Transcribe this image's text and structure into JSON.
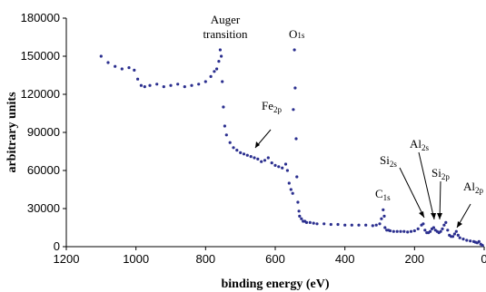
{
  "chart_data": {
    "type": "scatter",
    "xlabel": "binding energy (eV)",
    "ylabel": "arbitrary units",
    "xlim": [
      1200,
      0
    ],
    "ylim": [
      0,
      180000
    ],
    "x_reversed": true,
    "x_ticks": [
      1200,
      1000,
      800,
      600,
      400,
      200,
      0
    ],
    "y_ticks": [
      0,
      30000,
      60000,
      90000,
      120000,
      150000,
      180000
    ],
    "x_tick_labels": [
      "1200",
      "1000",
      "800",
      "600",
      "400",
      "200",
      "0"
    ],
    "y_tick_labels": [
      "0",
      "30000",
      "60000",
      "90000",
      "120000",
      "150000",
      "180000"
    ],
    "grid": false,
    "legend": "none",
    "marker_color": "#2b2f8f",
    "series": [
      {
        "x": [
          1100,
          1080,
          1060,
          1040,
          1020,
          1005,
          995,
          985,
          975,
          960,
          940,
          920,
          900,
          880,
          860,
          840,
          820,
          800,
          785,
          775,
          768,
          762,
          758,
          755,
          752,
          749,
          745,
          740,
          730,
          720,
          710,
          700,
          690,
          680,
          670,
          660,
          650,
          640,
          630,
          620,
          610,
          600,
          590,
          580,
          570,
          565,
          560,
          555,
          550,
          548,
          545,
          543,
          540,
          538,
          535,
          532,
          530,
          525,
          520,
          515,
          510,
          500,
          490,
          480,
          460,
          440,
          420,
          400,
          380,
          360,
          340,
          320,
          310,
          300,
          295,
          290,
          287,
          285,
          280,
          275,
          270,
          260,
          250,
          240,
          230,
          220,
          210,
          200,
          190,
          180,
          175,
          170,
          165,
          160,
          155,
          150,
          145,
          140,
          135,
          130,
          125,
          120,
          115,
          110,
          105,
          100,
          95,
          90,
          85,
          80,
          75,
          70,
          60,
          50,
          40,
          30,
          25,
          20,
          15,
          10,
          5
        ],
        "y": [
          150000,
          145000,
          142000,
          140000,
          141000,
          139000,
          132000,
          127000,
          126000,
          127000,
          128000,
          126000,
          127000,
          128000,
          126000,
          127000,
          128000,
          130000,
          134000,
          138000,
          140000,
          146000,
          155000,
          150000,
          130000,
          110000,
          95000,
          88000,
          82000,
          78000,
          76000,
          74000,
          73000,
          72000,
          71000,
          70000,
          69000,
          67000,
          68000,
          70000,
          66000,
          64000,
          63000,
          62000,
          65000,
          60000,
          50000,
          45000,
          42000,
          108000,
          155000,
          125000,
          85000,
          55000,
          35000,
          28000,
          24000,
          22000,
          20000,
          20000,
          19000,
          19000,
          18500,
          18000,
          18000,
          17500,
          17500,
          17000,
          17000,
          17000,
          17000,
          16500,
          17000,
          18000,
          22000,
          29000,
          24000,
          15000,
          13000,
          13000,
          12500,
          12000,
          12000,
          12000,
          12000,
          11500,
          12000,
          12500,
          14000,
          17000,
          18000,
          13000,
          11000,
          11000,
          12000,
          14000,
          15000,
          13000,
          12000,
          11000,
          12000,
          14000,
          17000,
          19000,
          13000,
          9000,
          8000,
          8000,
          10000,
          12000,
          9000,
          7000,
          6000,
          5000,
          4500,
          4000,
          3500,
          3000,
          4000,
          2000,
          1000
        ]
      }
    ],
    "annotations": [
      {
        "main": "Auger",
        "line2": "transition",
        "sub": ""
      },
      {
        "main": "O",
        "sub": "1s"
      },
      {
        "main": "Fe",
        "sub": "2p"
      },
      {
        "main": "C",
        "sub": "1s"
      },
      {
        "main": "Si",
        "sub": "2s"
      },
      {
        "main": "Al",
        "sub": "2s"
      },
      {
        "main": "Si",
        "sub": "2p"
      },
      {
        "main": "Al",
        "sub": "2p"
      }
    ]
  }
}
